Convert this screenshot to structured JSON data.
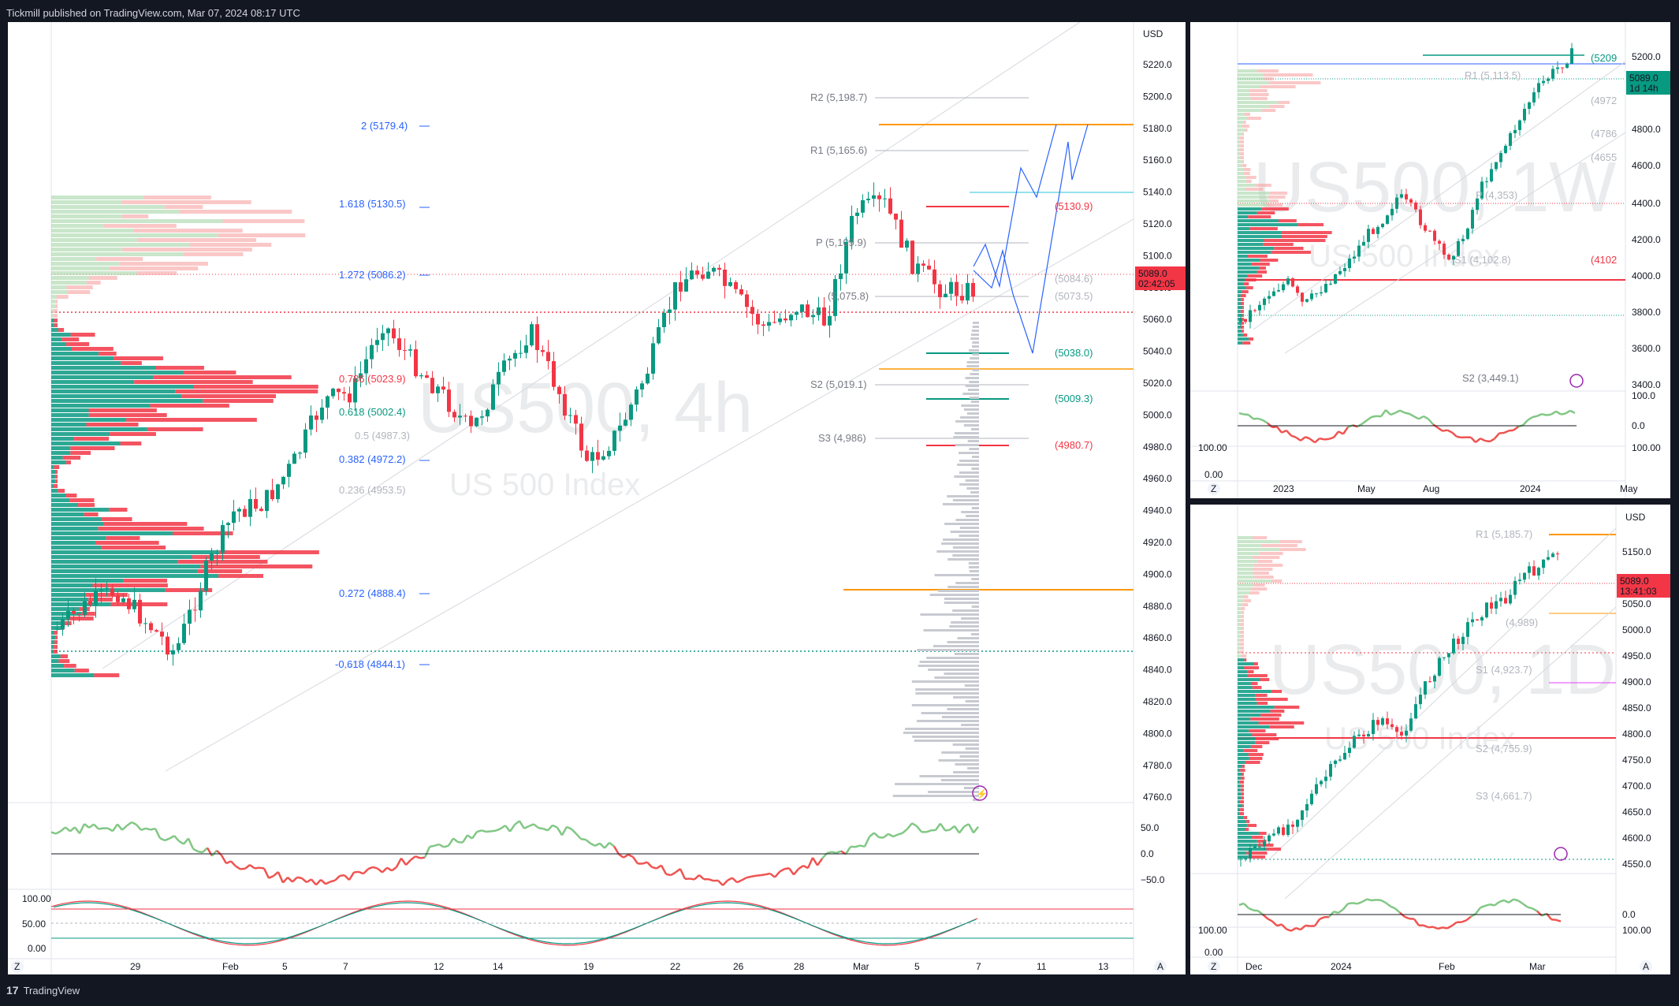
{
  "header": {
    "publisher": "Tickmill published on TradingView.com, Mar 07, 2024 08:17 UTC"
  },
  "footer": {
    "brand": "TradingView",
    "logo_text": "17"
  },
  "colors": {
    "up": "#089981",
    "down": "#f23645",
    "fib": "#2962ff",
    "accent_orange": "#ff9800",
    "price_red": "#f23645"
  },
  "main": {
    "currency": "USD",
    "watermark": "US500, 4h",
    "watermark_sub": "US 500 Index",
    "price_axis": [
      "5220.0",
      "5200.0",
      "5180.0",
      "5160.0",
      "5140.0",
      "5120.0",
      "5100.0",
      "5080.0",
      "5060.0",
      "5040.0",
      "5020.0",
      "5000.0",
      "4980.0",
      "4960.0",
      "4940.0",
      "4920.0",
      "4900.0",
      "4880.0",
      "4860.0",
      "4840.0",
      "4820.0",
      "4800.0",
      "4780.0",
      "4760.0"
    ],
    "price_tag": {
      "price": "5089.0",
      "countdown": "02:42:05"
    },
    "fib_levels": [
      "2 (5179.4)",
      "1.618 (5130.5)",
      "1.272 (5086.2)",
      "0.786 (5023.9)",
      "0.618 (5002.4)",
      "0.5 (4987.3)",
      "0.382 (4972.2)",
      "0.236 (4953.5)",
      "0.272 (4888.4)",
      "-0.618 (4844.1)"
    ],
    "pivots": [
      "R2 (5,198.7)",
      "R1 (5,165.6)",
      "P (5,109.9)",
      "(5,075.8)",
      "S2 (5,019.1)",
      "S3 (4,986)"
    ],
    "targets": [
      "(5130.9)",
      "(5084.6)",
      "(5073.5)",
      "(5038.0)",
      "(5009.3)",
      "(4980.7)"
    ],
    "osc_axis": [
      "50.0",
      "0.0",
      "−50.0"
    ],
    "stoch_axis": [
      "100.00",
      "50.00",
      "0.00"
    ],
    "time_axis": [
      "29",
      "Feb",
      "5",
      "7",
      "12",
      "14",
      "19",
      "22",
      "26",
      "28",
      "Mar",
      "5",
      "7",
      "11",
      "13"
    ],
    "z_label": "Z",
    "a_label": "A"
  },
  "weekly": {
    "watermark": "US500, 1W",
    "watermark_sub": "US 500 Index",
    "price_axis": [
      "5200.0",
      "4800.0",
      "4600.0",
      "4400.0",
      "4200.0",
      "4000.0",
      "3800.0",
      "3600.0",
      "3400.0"
    ],
    "price_tag": {
      "price": "5089.0",
      "countdown": "1d 14h"
    },
    "labels": [
      "R1 (5,113.5)",
      "(5209",
      "(4972",
      "(4786",
      "(4655",
      "P (4,353)",
      "S1 (4,102.8)",
      "(4102",
      "S2 (3,449.1)"
    ],
    "osc_axis": [
      "100.0",
      "0.0"
    ],
    "stoch_axis": [
      "100.00",
      "0.00"
    ],
    "time_axis": [
      "2023",
      "May",
      "Aug",
      "2024",
      "May"
    ],
    "z_label": "Z"
  },
  "daily": {
    "currency": "USD",
    "watermark": "US500, 1D",
    "watermark_sub": "US 500 Index",
    "price_axis": [
      "5150.0",
      "5100.0",
      "5050.0",
      "5000.0",
      "4950.0",
      "4900.0",
      "4850.0",
      "4800.0",
      "4750.0",
      "4700.0",
      "4650.0",
      "4600.0",
      "4550.0"
    ],
    "price_tag": {
      "price": "5089.0",
      "countdown": "13:41:03"
    },
    "labels": [
      "R1 (5,185.7)",
      "(4,989)",
      "S1 (4,923.7)",
      "S2 (4,755.9)",
      "S3 (4,661.7)"
    ],
    "osc_axis": [
      "0.0"
    ],
    "stoch_axis": [
      "100.00",
      "0.00"
    ],
    "time_axis": [
      "Dec",
      "2024",
      "Feb",
      "Mar"
    ],
    "z_label": "Z",
    "a_label": "A"
  }
}
